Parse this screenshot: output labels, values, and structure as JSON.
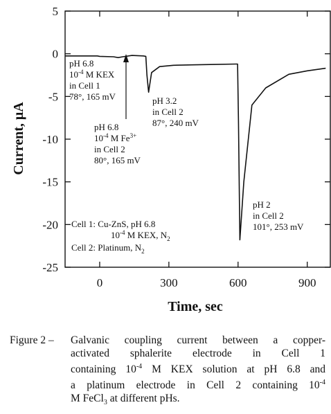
{
  "chart_data": {
    "type": "line",
    "xlabel": "Time, sec",
    "ylabel": "Current, μA",
    "xlim": [
      -150,
      1000
    ],
    "ylim": [
      -25,
      5
    ],
    "xticks": [
      0,
      300,
      600,
      900
    ],
    "yticks": [
      5,
      0,
      -5,
      -10,
      -15,
      -20,
      -25
    ],
    "grid": false,
    "series": [
      {
        "x": [
          -150,
          -10,
          0,
          60,
          80,
          100,
          140,
          190,
          200,
          205,
          212,
          225,
          260,
          320,
          400,
          500,
          590,
          598,
          602,
          608,
          625,
          660,
          720,
          820,
          900,
          980
        ],
        "y": [
          -0.25,
          -0.25,
          -0.3,
          -0.35,
          -0.45,
          -0.35,
          -0.2,
          -0.25,
          -0.3,
          -2.5,
          -4.5,
          -2.2,
          -1.5,
          -1.35,
          -1.3,
          -1.25,
          -1.2,
          -1.2,
          -8,
          -21.8,
          -15,
          -6,
          -4,
          -2.4,
          -2,
          -1.7
        ]
      }
    ],
    "annotations": [
      {
        "id": "a1",
        "lines": [
          "pH 6.8",
          "10-4 M KEX",
          "in Cell 1",
          "78°, 165 mV"
        ]
      },
      {
        "id": "a2",
        "lines": [
          "pH 6.8",
          "10-4 M Fe3+",
          "in Cell 2",
          "80°, 165 mV"
        ]
      },
      {
        "id": "a3",
        "lines": [
          "pH 3.2",
          "in Cell 2",
          "87°, 240 mV"
        ]
      },
      {
        "id": "a4",
        "lines": [
          "pH 2",
          "in Cell 2",
          "101°, 253 mV"
        ]
      },
      {
        "id": "a5",
        "lines": [
          "Cell 1: Cu-ZnS, pH 6.8",
          "10-4 M KEX, N2",
          "Cell 2: Platinum, N2"
        ]
      }
    ]
  },
  "caption": {
    "label": "Figure 2 –",
    "lines": [
      "Galvanic coupling current between a copper-",
      "activated sphalerite electrode in Cell 1",
      "containing 10-4 M KEX solution at pH 6.8 and",
      "a platinum electrode in Cell 2 containing 10-4",
      "M FeCl3 at different pHs."
    ]
  }
}
